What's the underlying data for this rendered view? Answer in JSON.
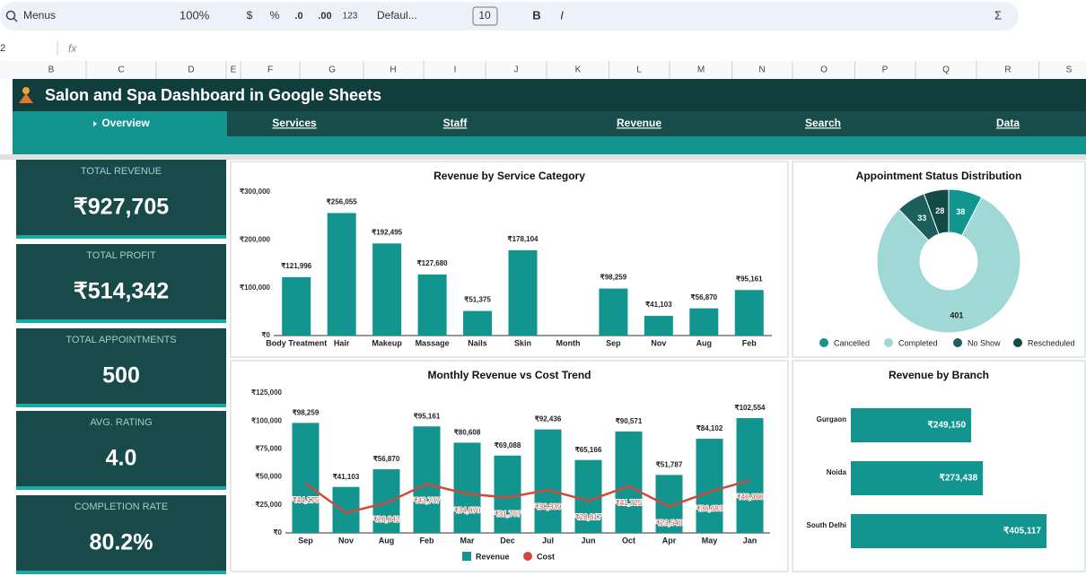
{
  "toolbar": {
    "search": "Menus",
    "zoom": "100%",
    "currency": "$",
    "percent": "%",
    "decrease_decimals": ".0",
    "increase_decimals": ".00",
    "number_format": "123",
    "font": "Defaul...",
    "font_size": "10",
    "bold": "B",
    "italic": "I",
    "sum": "Σ"
  },
  "formula_bar": {
    "cell": "2",
    "fx": "fx"
  },
  "columns": [
    "B",
    "C",
    "D",
    "E",
    "F",
    "G",
    "H",
    "I",
    "J",
    "K",
    "L",
    "M",
    "N",
    "O",
    "P",
    "Q",
    "R",
    "S"
  ],
  "dashboard": {
    "title": "Salon and Spa Dashboard in Google Sheets",
    "tabs": [
      "Overview",
      "Services",
      "Staff",
      "Revenue",
      "Search",
      "Data"
    ],
    "kpis": [
      {
        "label": "TOTAL REVENUE",
        "value": "₹927,705"
      },
      {
        "label": "TOTAL PROFIT",
        "value": "₹514,342"
      },
      {
        "label": "TOTAL APPOINTMENTS",
        "value": "500"
      },
      {
        "label": "AVG. RATING",
        "value": "4.0"
      },
      {
        "label": "COMPLETION RATE",
        "value": "80.2%"
      }
    ]
  },
  "chart_data": [
    {
      "type": "bar",
      "title": "Revenue by Service Category",
      "categories": [
        "Body Treatment",
        "Hair",
        "Makeup",
        "Massage",
        "Nails",
        "Skin",
        "Month",
        "Sep",
        "Nov",
        "Aug",
        "Feb"
      ],
      "values": [
        121996,
        256055,
        192495,
        127680,
        51375,
        178104,
        null,
        98259,
        41103,
        56870,
        95161
      ],
      "value_labels": [
        "₹121,996",
        "₹256,055",
        "₹192,495",
        "₹127,680",
        "₹51,375",
        "₹178,104",
        null,
        "₹98,259",
        "₹41,103",
        "₹56,870",
        "₹95,161"
      ],
      "color": "#12958f",
      "grid": false,
      "ylim": [
        0,
        300000
      ],
      "yticks": [
        {
          "value": 0,
          "label": "₹0"
        },
        {
          "value": 100000,
          "label": "₹100,000"
        },
        {
          "value": 200000,
          "label": "₹200,000"
        },
        {
          "value": 300000,
          "label": "₹300,000"
        }
      ]
    },
    {
      "type": "combo",
      "title": "Monthly Revenue vs Cost Trend",
      "categories": [
        "Sep",
        "Nov",
        "Aug",
        "Feb",
        "Mar",
        "Dec",
        "Jul",
        "Jun",
        "Oct",
        "Apr",
        "May",
        "Jan"
      ],
      "series": [
        {
          "name": "Revenue",
          "mark": "bar",
          "color": "#12958f",
          "values": [
            98259,
            41103,
            56870,
            95161,
            80608,
            69088,
            92436,
            65166,
            90571,
            51787,
            84102,
            102554
          ],
          "value_labels": [
            "₹98,259",
            "₹41,103",
            "₹56,870",
            "₹95,161",
            "₹80,608",
            "₹69,088",
            "₹92,436",
            "₹65,166",
            "₹90,571",
            "₹51,787",
            "₹84,102",
            "₹102,554"
          ]
        },
        {
          "name": "Cost",
          "mark": "line",
          "color": "#d0493d",
          "values": [
            44175,
            18000,
            26842,
            43737,
            34870,
            31707,
            38339,
            28817,
            41725,
            23540,
            36683,
            46998
          ],
          "value_labels": [
            "₹44,175",
            null,
            "₹26,842",
            "₹43,737",
            "₹34,870",
            "₹31,707",
            "₹38,339",
            "₹28,817",
            "₹41,725",
            "₹23,540",
            "₹36,683",
            "₹46,998"
          ]
        }
      ],
      "grid": false,
      "legend": "bottom",
      "ylim": [
        0,
        125000
      ],
      "yticks": [
        {
          "value": 0,
          "label": "₹0"
        },
        {
          "value": 25000,
          "label": "₹25,000"
        },
        {
          "value": 50000,
          "label": "₹50,000"
        },
        {
          "value": 75000,
          "label": "₹75,000"
        },
        {
          "value": 100000,
          "label": "₹100,000"
        },
        {
          "value": 125000,
          "label": "₹125,000"
        }
      ]
    },
    {
      "type": "pie",
      "title": "Appointment Status Distribution",
      "donut": true,
      "legend": "bottom",
      "categories": [
        "Cancelled",
        "Completed",
        "No Show",
        "Rescheduled"
      ],
      "values": [
        38,
        401,
        33,
        28
      ],
      "colors": [
        "#12958f",
        "#9fd8d5",
        "#1c5f5c",
        "#124a47"
      ]
    },
    {
      "type": "hbar",
      "title": "Revenue by Branch",
      "categories": [
        "Gurgaon",
        "Noida",
        "South Delhi"
      ],
      "values": [
        249150,
        273438,
        405117
      ],
      "value_labels": [
        "₹249,150",
        "₹273,438",
        "₹405,117"
      ],
      "color": "#12958f"
    }
  ]
}
